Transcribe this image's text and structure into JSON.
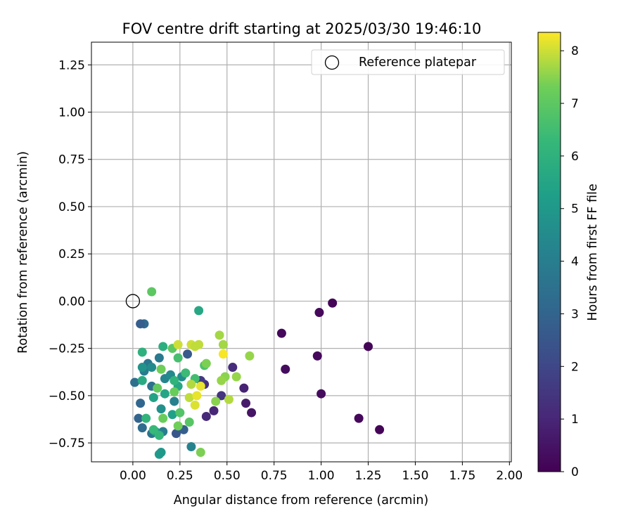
{
  "chart_data": {
    "type": "scatter",
    "title": "FOV centre drift starting at 2025/03/30 19:46:10",
    "xlabel": "Angular distance from reference (arcmin)",
    "ylabel": "Rotation from reference (arcmin)",
    "xlim": [
      -0.22,
      2.01
    ],
    "ylim": [
      -0.85,
      1.37
    ],
    "xticks": [
      0.0,
      0.25,
      0.5,
      0.75,
      1.0,
      1.25,
      1.5,
      1.75,
      2.0
    ],
    "xtick_labels": [
      "0.00",
      "0.25",
      "0.50",
      "0.75",
      "1.00",
      "1.25",
      "1.50",
      "1.75",
      "2.00"
    ],
    "yticks": [
      -0.75,
      -0.5,
      -0.25,
      0.0,
      0.25,
      0.5,
      0.75,
      1.0,
      1.25
    ],
    "ytick_labels": [
      "−0.75",
      "−0.50",
      "−0.25",
      "0.00",
      "0.25",
      "0.50",
      "0.75",
      "1.00",
      "1.25"
    ],
    "grid": true,
    "legend": {
      "position": "top-right",
      "entries": [
        {
          "label": "Reference platepar",
          "marker": "open-circle"
        }
      ]
    },
    "reference_point": {
      "x": 0.0,
      "y": 0.0
    },
    "colorbar": {
      "label": "Hours from first FF file",
      "colormap": "viridis",
      "range": [
        0,
        8.35
      ],
      "ticks": [
        0,
        1,
        2,
        3,
        4,
        5,
        6,
        7,
        8
      ],
      "tick_labels": [
        "0",
        "1",
        "2",
        "3",
        "4",
        "5",
        "6",
        "7",
        "8"
      ]
    },
    "series": [
      {
        "points": [
          {
            "x": 1.06,
            "y": -0.01,
            "h": 0.1
          },
          {
            "x": 0.99,
            "y": -0.06,
            "h": 0.2
          },
          {
            "x": 1.25,
            "y": -0.24,
            "h": 0.1
          },
          {
            "x": 0.79,
            "y": -0.17,
            "h": 0.2
          },
          {
            "x": 0.81,
            "y": -0.36,
            "h": 0.3
          },
          {
            "x": 0.98,
            "y": -0.29,
            "h": 0.2
          },
          {
            "x": 1.0,
            "y": -0.49,
            "h": 0.3
          },
          {
            "x": 1.2,
            "y": -0.62,
            "h": 0.2
          },
          {
            "x": 1.31,
            "y": -0.68,
            "h": 0.1
          },
          {
            "x": 0.63,
            "y": -0.59,
            "h": 0.5
          },
          {
            "x": 0.6,
            "y": -0.54,
            "h": 0.7
          },
          {
            "x": 0.59,
            "y": -0.46,
            "h": 0.9
          },
          {
            "x": 0.53,
            "y": -0.35,
            "h": 1.2
          },
          {
            "x": 0.47,
            "y": -0.5,
            "h": 1.4
          },
          {
            "x": 0.43,
            "y": -0.58,
            "h": 1.0
          },
          {
            "x": 0.39,
            "y": -0.61,
            "h": 1.1
          },
          {
            "x": 0.38,
            "y": -0.44,
            "h": 1.3
          },
          {
            "x": 0.36,
            "y": -0.42,
            "h": 1.6
          },
          {
            "x": 0.29,
            "y": -0.28,
            "h": 2.6
          },
          {
            "x": 0.27,
            "y": -0.68,
            "h": 2.8
          },
          {
            "x": 0.23,
            "y": -0.7,
            "h": 2.5
          },
          {
            "x": 0.06,
            "y": -0.12,
            "h": 3.2
          },
          {
            "x": 0.04,
            "y": -0.12,
            "h": 2.8
          },
          {
            "x": 0.01,
            "y": -0.43,
            "h": 3.4
          },
          {
            "x": 0.04,
            "y": -0.54,
            "h": 3.1
          },
          {
            "x": 0.03,
            "y": -0.62,
            "h": 3.0
          },
          {
            "x": 0.05,
            "y": -0.67,
            "h": 3.3
          },
          {
            "x": 0.1,
            "y": -0.7,
            "h": 3.6
          },
          {
            "x": 0.14,
            "y": -0.3,
            "h": 3.8
          },
          {
            "x": 0.08,
            "y": -0.33,
            "h": 3.7
          },
          {
            "x": 0.06,
            "y": -0.37,
            "h": 3.9
          },
          {
            "x": 0.1,
            "y": -0.45,
            "h": 3.5
          },
          {
            "x": 0.16,
            "y": -0.69,
            "h": 4.0
          },
          {
            "x": 0.31,
            "y": -0.77,
            "h": 4.2
          },
          {
            "x": 0.22,
            "y": -0.53,
            "h": 4.1
          },
          {
            "x": 0.17,
            "y": -0.41,
            "h": 4.3
          },
          {
            "x": 0.2,
            "y": -0.39,
            "h": 4.4
          },
          {
            "x": 0.26,
            "y": -0.4,
            "h": 4.6
          },
          {
            "x": 0.1,
            "y": -0.35,
            "h": 4.5
          },
          {
            "x": 0.05,
            "y": -0.35,
            "h": 4.8
          },
          {
            "x": 0.15,
            "y": -0.57,
            "h": 4.7
          },
          {
            "x": 0.14,
            "y": -0.81,
            "h": 5.1
          },
          {
            "x": 0.15,
            "y": -0.8,
            "h": 5.0
          },
          {
            "x": 0.12,
            "y": -0.69,
            "h": 5.2
          },
          {
            "x": 0.21,
            "y": -0.6,
            "h": 5.3
          },
          {
            "x": 0.11,
            "y": -0.51,
            "h": 5.4
          },
          {
            "x": 0.17,
            "y": -0.49,
            "h": 5.5
          },
          {
            "x": 0.24,
            "y": -0.45,
            "h": 5.6
          },
          {
            "x": 0.05,
            "y": -0.42,
            "h": 5.7
          },
          {
            "x": 0.35,
            "y": -0.05,
            "h": 5.6
          },
          {
            "x": 0.16,
            "y": -0.24,
            "h": 5.9
          },
          {
            "x": 0.05,
            "y": -0.27,
            "h": 6.0
          },
          {
            "x": 0.07,
            "y": -0.62,
            "h": 6.1
          },
          {
            "x": 0.14,
            "y": -0.71,
            "h": 6.2
          },
          {
            "x": 0.11,
            "y": -0.68,
            "h": 6.3
          },
          {
            "x": 0.22,
            "y": -0.42,
            "h": 6.1
          },
          {
            "x": 0.28,
            "y": -0.38,
            "h": 6.4
          },
          {
            "x": 0.24,
            "y": -0.3,
            "h": 6.6
          },
          {
            "x": 0.33,
            "y": -0.41,
            "h": 6.5
          },
          {
            "x": 0.38,
            "y": -0.34,
            "h": 6.7
          },
          {
            "x": 0.25,
            "y": -0.59,
            "h": 6.8
          },
          {
            "x": 0.3,
            "y": -0.64,
            "h": 6.9
          },
          {
            "x": 0.21,
            "y": -0.25,
            "h": 7.0
          },
          {
            "x": 0.1,
            "y": 0.05,
            "h": 7.0
          },
          {
            "x": 0.13,
            "y": -0.46,
            "h": 7.1
          },
          {
            "x": 0.16,
            "y": -0.62,
            "h": 7.2
          },
          {
            "x": 0.22,
            "y": -0.48,
            "h": 7.2
          },
          {
            "x": 0.15,
            "y": -0.36,
            "h": 7.3
          },
          {
            "x": 0.24,
            "y": -0.66,
            "h": 7.3
          },
          {
            "x": 0.36,
            "y": -0.8,
            "h": 7.4
          },
          {
            "x": 0.39,
            "y": -0.33,
            "h": 7.4
          },
          {
            "x": 0.44,
            "y": -0.53,
            "h": 7.5
          },
          {
            "x": 0.49,
            "y": -0.4,
            "h": 7.5
          },
          {
            "x": 0.55,
            "y": -0.4,
            "h": 7.6
          },
          {
            "x": 0.47,
            "y": -0.42,
            "h": 7.6
          },
          {
            "x": 0.62,
            "y": -0.29,
            "h": 7.6
          },
          {
            "x": 0.46,
            "y": -0.18,
            "h": 7.7
          },
          {
            "x": 0.48,
            "y": -0.23,
            "h": 7.7
          },
          {
            "x": 0.51,
            "y": -0.52,
            "h": 7.8
          },
          {
            "x": 0.31,
            "y": -0.44,
            "h": 7.8
          },
          {
            "x": 0.3,
            "y": -0.51,
            "h": 7.9
          },
          {
            "x": 0.35,
            "y": -0.23,
            "h": 7.9
          },
          {
            "x": 0.31,
            "y": -0.23,
            "h": 8.0
          },
          {
            "x": 0.24,
            "y": -0.23,
            "h": 8.0
          },
          {
            "x": 0.33,
            "y": -0.55,
            "h": 8.1
          },
          {
            "x": 0.36,
            "y": -0.45,
            "h": 8.2
          },
          {
            "x": 0.34,
            "y": -0.5,
            "h": 8.2
          },
          {
            "x": 0.48,
            "y": -0.28,
            "h": 8.3
          },
          {
            "x": 0.33,
            "y": -0.24,
            "h": 7.9
          }
        ]
      }
    ]
  }
}
